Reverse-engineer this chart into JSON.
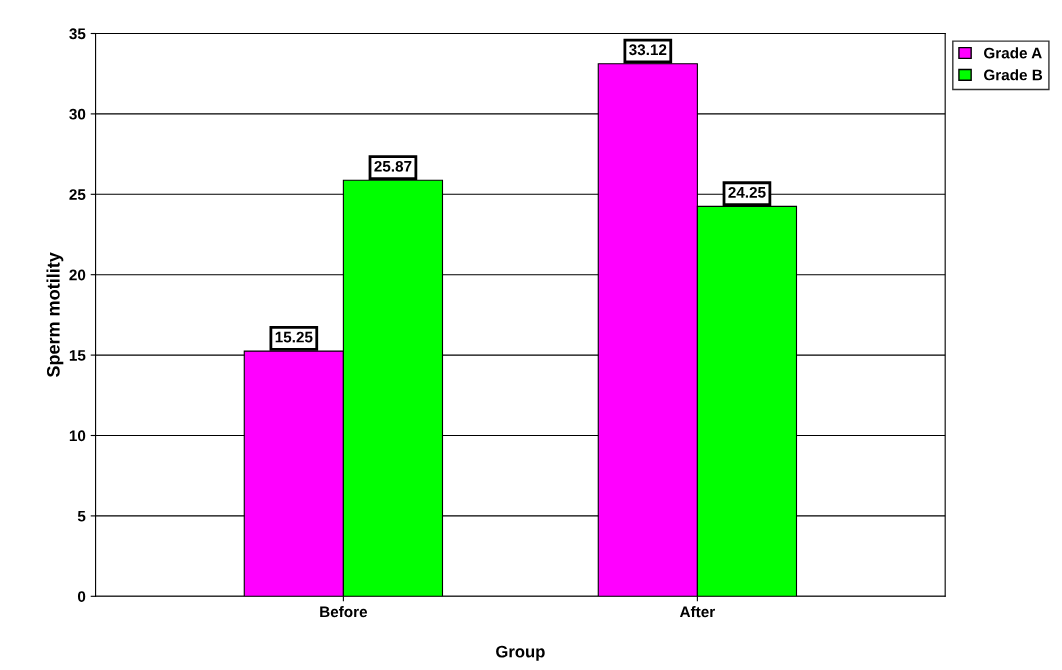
{
  "chart_data": {
    "type": "bar",
    "xlabel": "Group",
    "ylabel": "Sperm motility",
    "categories": [
      "Before",
      "After"
    ],
    "series": [
      {
        "name": "Grade A",
        "color": "#ff00ff",
        "values": [
          15.25,
          33.12
        ]
      },
      {
        "name": "Grade B",
        "color": "#00ff00",
        "values": [
          25.87,
          24.25
        ]
      }
    ],
    "ylim": [
      0,
      35
    ],
    "yticks": [
      0,
      5,
      10,
      15,
      20,
      25,
      30,
      35
    ],
    "grid": "y",
    "legend": "top right",
    "data_labels": true
  }
}
